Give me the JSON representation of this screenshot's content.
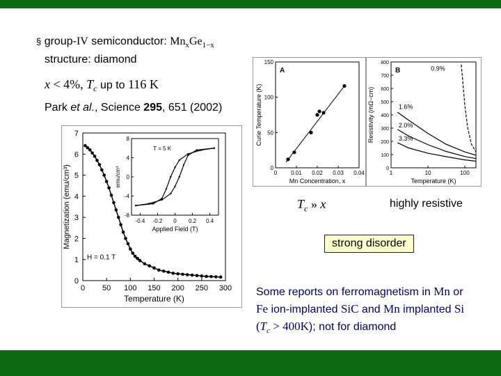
{
  "slide": {
    "line1": {
      "bullet": "§",
      "text_a": "group-",
      "roman": "IV",
      "text_b": " semiconductor: ",
      "mn": "Mn",
      "x_sub": "x",
      "ge": "Ge",
      "one_minus_x": "1−x"
    },
    "line2": "structure: diamond",
    "line3": {
      "x": "x",
      "lt": " < 4%, ",
      "tc_T": "T",
      "tc_sub": "c",
      "up_to": " up to ",
      "value": "116 K"
    },
    "citation": {
      "author": "Park ",
      "etal": "et al.",
      "journal": ", Science ",
      "volume": "295",
      "pages": ", 651 (2002)"
    },
    "tc_relation": {
      "T": "T",
      "sub": "c",
      "rel": " » ",
      "x": "x"
    },
    "highly_resistive": "highly resistive",
    "strong_disorder": "strong disorder",
    "reports": {
      "p1": "Some reports on ferromagnetism in ",
      "mn1": "Mn",
      "p2": " or",
      "fe": "Fe",
      "p3": " ion-implanted ",
      "sic": "SiC",
      "p4": " and ",
      "mn2": "Mn",
      "p5": " implanted ",
      "si": "Si",
      "open": "(",
      "tcT": "T",
      "tcsub": "c",
      "gt": " > 400K",
      "p6": "); not for diamond"
    },
    "colors": {
      "bar_green": "#0d6b14",
      "box_yellow": "#ffffcc",
      "text_blue": "#000066"
    }
  },
  "chart_data": [
    {
      "type": "line",
      "xlabel": "Temperature (K)",
      "ylabel": "Magnetization (emu/cm³)",
      "xlim": [
        0,
        300
      ],
      "ylim": [
        0,
        7
      ],
      "x_ticks": [
        "0",
        "50",
        "100",
        "150",
        "200",
        "250",
        "300"
      ],
      "y_ticks": [
        "0",
        "1",
        "2",
        "3",
        "4",
        "5",
        "6",
        "7"
      ],
      "annotation": "H = 0.1 T",
      "x": [
        5,
        10,
        15,
        20,
        25,
        30,
        35,
        40,
        45,
        50,
        55,
        60,
        65,
        70,
        75,
        80,
        85,
        90,
        95,
        100,
        105,
        110,
        115,
        120,
        130,
        140,
        150,
        160,
        170,
        180,
        190,
        200,
        210,
        220,
        230,
        240,
        250,
        260,
        270,
        280,
        290
      ],
      "values": [
        6.4,
        6.3,
        6.2,
        6.05,
        5.9,
        5.7,
        5.5,
        5.25,
        5.0,
        4.7,
        4.4,
        4.05,
        3.7,
        3.35,
        3.0,
        2.65,
        2.3,
        2.0,
        1.75,
        1.5,
        1.3,
        1.15,
        1.05,
        0.95,
        0.8,
        0.7,
        0.6,
        0.5,
        0.45,
        0.4,
        0.35,
        0.32,
        0.3,
        0.28,
        0.26,
        0.24,
        0.22,
        0.2,
        0.19,
        0.18,
        0.17
      ]
    },
    {
      "type": "line",
      "xlabel": "Applied Field (T)",
      "ylabel": "emu/cm³",
      "xlim": [
        -0.5,
        0.5
      ],
      "ylim": [
        -8,
        8
      ],
      "x_ticks": [
        "-0.4",
        "-0.2",
        "0",
        "0.2",
        "0.4"
      ],
      "y_ticks": [
        "8",
        "4",
        "0",
        "-4",
        "-8"
      ],
      "annotation": "T = 5 K",
      "series": [
        {
          "x": [
            -0.45,
            -0.3,
            -0.15,
            -0.05,
            0.0,
            0.05,
            0.1,
            0.15,
            0.25,
            0.45
          ],
          "values": [
            -6,
            -5.6,
            -4.8,
            -3.5,
            -2.0,
            0,
            2.5,
            4.5,
            5.6,
            6
          ]
        },
        {
          "x": [
            -0.45,
            -0.25,
            -0.15,
            -0.1,
            -0.05,
            0.0,
            0.05,
            0.15,
            0.3,
            0.45
          ],
          "values": [
            -6,
            -5.6,
            -4.5,
            -2.5,
            0,
            2.0,
            3.5,
            4.8,
            5.6,
            6
          ]
        }
      ]
    },
    {
      "type": "scatter",
      "panel_label": "A",
      "xlabel": "Mn Concentration, x",
      "ylabel": "Curie Temperature (K)",
      "xlim": [
        0,
        0.04
      ],
      "ylim": [
        0,
        150
      ],
      "x_ticks": [
        "0",
        "0.01",
        "0.02",
        "0.03",
        "0.04"
      ],
      "y_ticks": [
        "0",
        "50",
        "100",
        "150"
      ],
      "x": [
        0.006,
        0.009,
        0.017,
        0.02,
        0.021,
        0.023,
        0.033
      ],
      "values": [
        12,
        22,
        50,
        75,
        80,
        78,
        116
      ]
    },
    {
      "type": "line",
      "panel_label": "B",
      "xlabel": "Temperature (K)",
      "ylabel": "Resistivity (mΩ−cm)",
      "x_scale": "log",
      "xlim": [
        1,
        200
      ],
      "ylim": [
        0,
        800
      ],
      "x_ticks": [
        "1",
        "10",
        "100"
      ],
      "y_ticks": [
        "0",
        "100",
        "200",
        "300",
        "400",
        "500",
        "600",
        "700",
        "800"
      ],
      "series": [
        {
          "name": "0.9%",
          "x": [
            80,
            90,
            100,
            120,
            150,
            200
          ],
          "values": [
            780,
            620,
            470,
            300,
            180,
            120
          ]
        },
        {
          "name": "1.6%",
          "x": [
            1.5,
            3,
            10,
            30,
            100,
            200
          ],
          "values": [
            420,
            360,
            260,
            180,
            120,
            95
          ]
        },
        {
          "name": "2.0%",
          "x": [
            1.5,
            3,
            10,
            30,
            100,
            200
          ],
          "values": [
            290,
            240,
            175,
            125,
            85,
            70
          ]
        },
        {
          "name": "3.3%",
          "x": [
            1.5,
            3,
            10,
            30,
            100,
            200
          ],
          "values": [
            190,
            150,
            110,
            85,
            60,
            50
          ]
        }
      ]
    }
  ]
}
